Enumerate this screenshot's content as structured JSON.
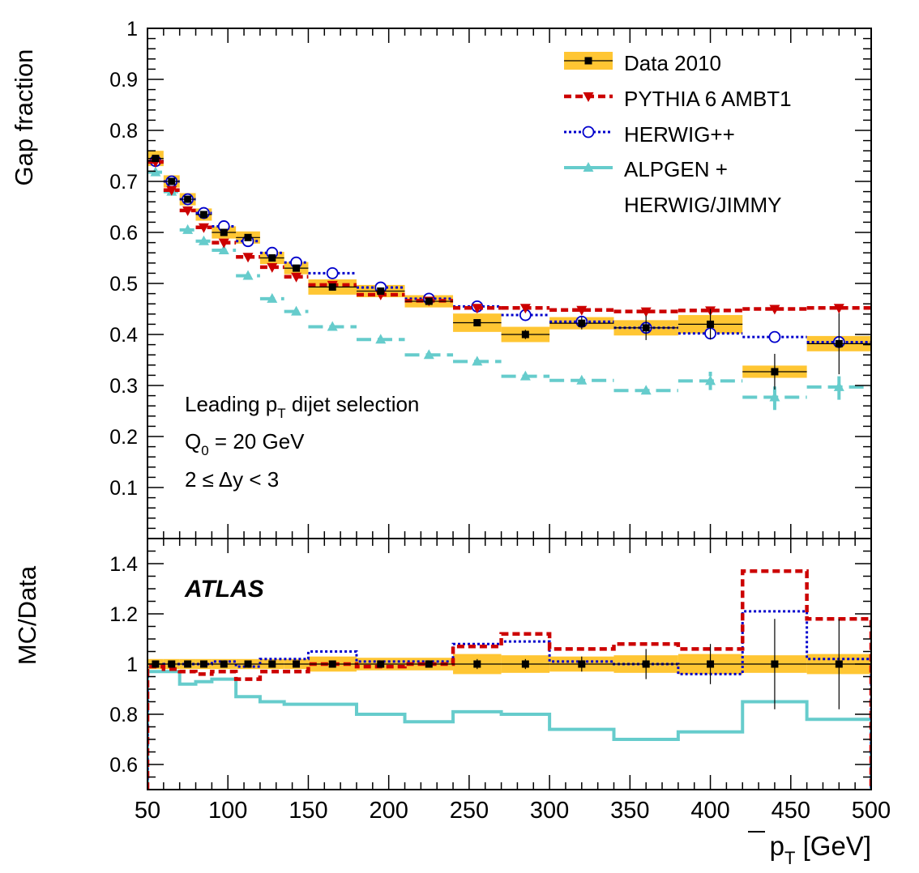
{
  "colors": {
    "data": "#000000",
    "band": "#ffc633",
    "pythia": "#cc0000",
    "herwig": "#0000cc",
    "alpgen": "#66cccc"
  },
  "chart_data": [
    {
      "type": "line",
      "panel": "upper",
      "ylabel": "Gap fraction",
      "xlim": [
        50,
        500
      ],
      "ylim": [
        0,
        1
      ],
      "yticks": [
        "0.1",
        "0.2",
        "0.3",
        "0.4",
        "0.5",
        "0.6",
        "0.7",
        "0.8",
        "0.9",
        "1"
      ],
      "annotations": {
        "line1_main": "Leading p",
        "line1_sub": "T",
        "line1_rest": " dijet selection",
        "line2_main": "Q",
        "line2_sub": "0",
        "line2_rest": " = 20 GeV",
        "line3": "2 ≤ Δy < 3"
      },
      "legend": {
        "position": "top-right",
        "entries": [
          "Data 2010",
          "PYTHIA 6 AMBT1",
          "HERWIG++",
          "ALPGEN +",
          "HERWIG/JIMMY"
        ]
      },
      "bins": [
        [
          50,
          60
        ],
        [
          60,
          70
        ],
        [
          70,
          80
        ],
        [
          80,
          90
        ],
        [
          90,
          105
        ],
        [
          105,
          120
        ],
        [
          120,
          135
        ],
        [
          135,
          150
        ],
        [
          150,
          180
        ],
        [
          180,
          210
        ],
        [
          210,
          240
        ],
        [
          240,
          270
        ],
        [
          270,
          300
        ],
        [
          300,
          340
        ],
        [
          340,
          380
        ],
        [
          380,
          420
        ],
        [
          420,
          460
        ],
        [
          460,
          500
        ]
      ],
      "x": [
        55,
        65,
        75,
        85,
        97.5,
        112.5,
        127.5,
        142.5,
        165,
        195,
        225,
        255,
        285,
        320,
        360,
        400,
        440,
        480
      ],
      "series": [
        {
          "name": "Data 2010",
          "values": [
            0.745,
            0.7,
            0.665,
            0.635,
            0.6,
            0.59,
            0.55,
            0.53,
            0.493,
            0.485,
            0.465,
            0.423,
            0.4,
            0.422,
            0.413,
            0.42,
            0.327,
            0.382
          ],
          "band": [
            0.015,
            0.012,
            0.012,
            0.012,
            0.012,
            0.012,
            0.012,
            0.012,
            0.015,
            0.012,
            0.012,
            0.018,
            0.015,
            0.012,
            0.015,
            0.018,
            0.012,
            0.015
          ],
          "err": [
            0.006,
            0.005,
            0.005,
            0.005,
            0.005,
            0.005,
            0.005,
            0.005,
            0.005,
            0.005,
            0.005,
            0.007,
            0.009,
            0.012,
            0.024,
            0.03,
            0.035,
            0.06
          ]
        },
        {
          "name": "PYTHIA 6 AMBT1",
          "values": [
            0.738,
            0.683,
            0.643,
            0.61,
            0.58,
            0.552,
            0.532,
            0.513,
            0.497,
            0.478,
            0.466,
            0.452,
            0.452,
            0.448,
            0.445,
            0.447,
            0.45,
            0.452
          ]
        },
        {
          "name": "HERWIG++",
          "values": [
            0.74,
            0.7,
            0.665,
            0.638,
            0.612,
            0.583,
            0.56,
            0.541,
            0.52,
            0.492,
            0.47,
            0.455,
            0.438,
            0.425,
            0.413,
            0.402,
            0.395,
            0.385
          ]
        },
        {
          "name": "ALPGEN + HERWIG/JIMMY",
          "values": [
            0.718,
            0.68,
            0.605,
            0.583,
            0.565,
            0.515,
            0.47,
            0.445,
            0.415,
            0.39,
            0.36,
            0.347,
            0.318,
            0.31,
            0.29,
            0.309,
            0.277,
            0.297
          ],
          "err": [
            0,
            0,
            0,
            0,
            0,
            0,
            0,
            0,
            0,
            0,
            0,
            0,
            0,
            0,
            0,
            0.018,
            0.025,
            0.025
          ]
        }
      ]
    },
    {
      "type": "line",
      "panel": "lower",
      "ylabel": "MC/Data",
      "xlabel_main": "p",
      "xlabel_sub": "T",
      "xlabel_rest": " [GeV]",
      "xlim": [
        50,
        500
      ],
      "ylim": [
        0.5,
        1.5
      ],
      "yticks": [
        "0.6",
        "0.8",
        "1",
        "1.2",
        "1.4"
      ],
      "xticks": [
        "50",
        "100",
        "150",
        "200",
        "250",
        "300",
        "350",
        "400",
        "450",
        "500"
      ],
      "annotation": "ATLAS",
      "series": [
        {
          "name": "Data 2010",
          "values": [
            1,
            1,
            1,
            1,
            1,
            1,
            1,
            1,
            1,
            1,
            1,
            1,
            1,
            1,
            1,
            1,
            1,
            1
          ],
          "band": [
            0.02,
            0.02,
            0.02,
            0.02,
            0.02,
            0.02,
            0.02,
            0.02,
            0.03,
            0.025,
            0.025,
            0.04,
            0.035,
            0.03,
            0.035,
            0.04,
            0.035,
            0.04
          ],
          "err": [
            0.01,
            0.01,
            0.01,
            0.01,
            0.01,
            0.01,
            0.01,
            0.01,
            0.01,
            0.01,
            0.01,
            0.02,
            0.02,
            0.03,
            0.06,
            0.08,
            0.18,
            0.18
          ]
        },
        {
          "name": "PYTHIA 6 AMBT1",
          "values": [
            0.99,
            0.98,
            0.97,
            0.96,
            0.97,
            0.94,
            0.97,
            0.97,
            1.0,
            0.99,
            1.0,
            1.07,
            1.12,
            1.06,
            1.08,
            1.06,
            1.37,
            1.18
          ]
        },
        {
          "name": "HERWIG++",
          "values": [
            0.99,
            1.0,
            1.0,
            1.0,
            1.01,
            0.99,
            1.02,
            1.02,
            1.05,
            1.01,
            1.01,
            1.08,
            1.09,
            1.01,
            1.0,
            0.96,
            1.21,
            1.02
          ]
        },
        {
          "name": "ALPGEN + HERWIG/JIMMY",
          "values": [
            0.97,
            0.97,
            0.92,
            0.93,
            0.94,
            0.87,
            0.85,
            0.84,
            0.84,
            0.8,
            0.77,
            0.81,
            0.8,
            0.74,
            0.7,
            0.73,
            0.85,
            0.78
          ]
        }
      ]
    }
  ]
}
